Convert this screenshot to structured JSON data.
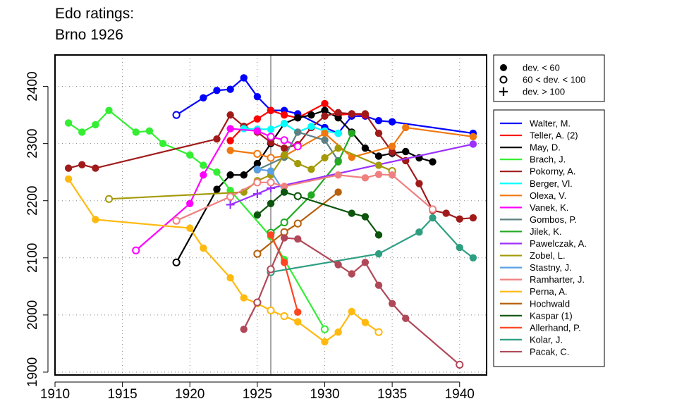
{
  "chart_data": {
    "type": "line",
    "title": [
      "Edo ratings:",
      "Brno 1926"
    ],
    "xlabel": "",
    "ylabel": "",
    "xlim": [
      1910,
      1942
    ],
    "ylim": [
      1895,
      2455
    ],
    "x_ticks": [
      1910,
      1915,
      1920,
      1925,
      1930,
      1935,
      1940
    ],
    "y_ticks": [
      1900,
      2000,
      2100,
      2200,
      2300,
      2400
    ],
    "reference_line_x": 1926,
    "grid": "dotted",
    "marker_legend": [
      {
        "marker": "filled",
        "label": "dev. < 60"
      },
      {
        "marker": "open",
        "label": "60 < dev. < 100"
      },
      {
        "marker": "plus",
        "label": "dev. > 100"
      }
    ],
    "series": [
      {
        "name": "Walter, M.",
        "color": "#0000ff",
        "points": [
          [
            1919,
            2350,
            "o"
          ],
          [
            1921,
            2380,
            "f"
          ],
          [
            1922,
            2393,
            "f"
          ],
          [
            1923,
            2395,
            "f"
          ],
          [
            1924,
            2415,
            "f"
          ],
          [
            1925,
            2382,
            "f"
          ],
          [
            1926,
            2358,
            "f"
          ],
          [
            1927,
            2358,
            "f"
          ],
          [
            1928,
            2352,
            "f"
          ],
          [
            1930,
            2328,
            "f"
          ],
          [
            1931,
            2318,
            "f"
          ],
          [
            1932,
            2348,
            "f"
          ],
          [
            1933,
            2348,
            "f"
          ],
          [
            1934,
            2340,
            "f"
          ],
          [
            1935,
            2338,
            "f"
          ],
          [
            1941,
            2318,
            "f"
          ]
        ]
      },
      {
        "name": "Teller, A. (2)",
        "color": "#ff0000",
        "points": [
          [
            1923,
            2305,
            "f"
          ],
          [
            1924,
            2330,
            "f"
          ],
          [
            1925,
            2343,
            "f"
          ],
          [
            1926,
            2358,
            "f"
          ],
          [
            1927,
            2350,
            "f"
          ],
          [
            1928,
            2345,
            "f"
          ],
          [
            1930,
            2370,
            "f"
          ],
          [
            1931,
            2350,
            "f"
          ],
          [
            1932,
            2352,
            "f"
          ],
          [
            1933,
            2350,
            "f"
          ]
        ]
      },
      {
        "name": "May, D.",
        "color": "#000000",
        "points": [
          [
            1919,
            2092,
            "o"
          ],
          [
            1922,
            2220,
            "f"
          ],
          [
            1923,
            2245,
            "f"
          ],
          [
            1924,
            2245,
            "f"
          ],
          [
            1925,
            2265,
            "f"
          ],
          [
            1926,
            2300,
            "f"
          ],
          [
            1927,
            2335,
            "f"
          ],
          [
            1928,
            2345,
            "f"
          ],
          [
            1929,
            2350,
            "f"
          ],
          [
            1930,
            2358,
            "f"
          ],
          [
            1931,
            2345,
            "f"
          ],
          [
            1932,
            2320,
            "f"
          ],
          [
            1933,
            2292,
            "f"
          ],
          [
            1934,
            2278,
            "f"
          ],
          [
            1935,
            2283,
            "f"
          ],
          [
            1936,
            2286,
            "f"
          ],
          [
            1937,
            2275,
            "f"
          ],
          [
            1938,
            2268,
            "f"
          ]
        ]
      },
      {
        "name": "Brach, J.",
        "color": "#33ee33",
        "points": [
          [
            1911,
            2336,
            "f"
          ],
          [
            1912,
            2320,
            "f"
          ],
          [
            1913,
            2333,
            "f"
          ],
          [
            1914,
            2358,
            "f"
          ],
          [
            1916,
            2320,
            "f"
          ],
          [
            1917,
            2322,
            "f"
          ],
          [
            1918,
            2300,
            "f"
          ],
          [
            1920,
            2280,
            "f"
          ],
          [
            1921,
            2262,
            "f"
          ],
          [
            1922,
            2250,
            "f"
          ],
          [
            1923,
            2218,
            "f"
          ],
          [
            1926,
            2137,
            "f"
          ],
          [
            1927,
            2097,
            "f"
          ],
          [
            1930,
            1975,
            "o"
          ]
        ]
      },
      {
        "name": "Pokorny, A.",
        "color": "#a01a1a",
        "points": [
          [
            1911,
            2257,
            "f"
          ],
          [
            1912,
            2263,
            "f"
          ],
          [
            1913,
            2257,
            "f"
          ],
          [
            1922,
            2308,
            "f"
          ],
          [
            1923,
            2350,
            "f"
          ],
          [
            1924,
            2330,
            "f"
          ],
          [
            1925,
            2320,
            "f"
          ],
          [
            1926,
            2302,
            "f"
          ],
          [
            1927,
            2292,
            "f"
          ],
          [
            1928,
            2298,
            "f"
          ],
          [
            1929,
            2328,
            "f"
          ],
          [
            1930,
            2348,
            "f"
          ],
          [
            1931,
            2354,
            "f"
          ],
          [
            1932,
            2352,
            "f"
          ],
          [
            1933,
            2352,
            "f"
          ],
          [
            1934,
            2318,
            "f"
          ],
          [
            1935,
            2285,
            "f"
          ],
          [
            1936,
            2270,
            "f"
          ],
          [
            1937,
            2230,
            "f"
          ],
          [
            1938,
            2183,
            "f"
          ],
          [
            1939,
            2178,
            "f"
          ],
          [
            1940,
            2168,
            "f"
          ],
          [
            1941,
            2170,
            "f"
          ]
        ]
      },
      {
        "name": "Berger, Vl.",
        "color": "#00ffff",
        "points": [
          [
            1924,
            2326,
            "f"
          ],
          [
            1925,
            2325,
            "f"
          ],
          [
            1926,
            2325,
            "f"
          ],
          [
            1927,
            2335,
            "f"
          ],
          [
            1928,
            2320,
            "f"
          ],
          [
            1929,
            2330,
            "f"
          ],
          [
            1930,
            2322,
            "f"
          ],
          [
            1931,
            2318,
            "f"
          ]
        ]
      },
      {
        "name": "Olexa, V.",
        "color": "#f07810",
        "points": [
          [
            1923,
            2288,
            "f"
          ],
          [
            1925,
            2282,
            "o"
          ],
          [
            1926,
            2275,
            "o"
          ],
          [
            1927,
            2278,
            "o"
          ],
          [
            1930,
            2318,
            "f"
          ],
          [
            1932,
            2276,
            "f"
          ],
          [
            1935,
            2295,
            "f"
          ],
          [
            1936,
            2328,
            "f"
          ],
          [
            1941,
            2312,
            "f"
          ]
        ]
      },
      {
        "name": "Vanek, K.",
        "color": "#ff00ff",
        "points": [
          [
            1916,
            2113,
            "o"
          ],
          [
            1920,
            2195,
            "f"
          ],
          [
            1921,
            2245,
            "f"
          ],
          [
            1923,
            2326,
            "f"
          ],
          [
            1925,
            2322,
            "f"
          ],
          [
            1926,
            2312,
            "o"
          ],
          [
            1927,
            2306,
            "o"
          ],
          [
            1928,
            2295,
            "o"
          ]
        ]
      },
      {
        "name": "Gombos, P.",
        "color": "#5f8080",
        "points": [
          [
            1925,
            2254,
            "f"
          ],
          [
            1927,
            2276,
            "f"
          ],
          [
            1928,
            2320,
            "f"
          ],
          [
            1930,
            2306,
            "f"
          ],
          [
            1931,
            2270,
            "f"
          ]
        ]
      },
      {
        "name": "Jilek, K.",
        "color": "#22aa22",
        "points": [
          [
            1926,
            2144,
            "o"
          ],
          [
            1927,
            2162,
            "o"
          ],
          [
            1929,
            2210,
            "f"
          ],
          [
            1931,
            2268,
            "f"
          ],
          [
            1932,
            2318,
            "f"
          ]
        ]
      },
      {
        "name": "Pawelczak, A.",
        "color": "#9b30ff",
        "points": [
          [
            1923,
            2193,
            "p"
          ],
          [
            1925,
            2212,
            "p"
          ],
          [
            1926,
            2222,
            "p"
          ],
          [
            1941,
            2299,
            "f"
          ]
        ]
      },
      {
        "name": "Zobel, L.",
        "color": "#a39a0a",
        "points": [
          [
            1914,
            2203,
            "o"
          ],
          [
            1924,
            2215,
            "f"
          ],
          [
            1925,
            2235,
            "f"
          ],
          [
            1926,
            2245,
            "f"
          ],
          [
            1927,
            2280,
            "f"
          ],
          [
            1928,
            2265,
            "f"
          ],
          [
            1929,
            2255,
            "f"
          ],
          [
            1930,
            2275,
            "f"
          ],
          [
            1931,
            2292,
            "f"
          ],
          [
            1934,
            2262,
            "f"
          ],
          [
            1935,
            2252,
            "o"
          ]
        ]
      },
      {
        "name": "Stastny, J.",
        "color": "#5aa0e6",
        "points": [
          [
            1925,
            2255,
            "f"
          ],
          [
            1926,
            2252,
            "f"
          ],
          [
            1927,
            2215,
            "f"
          ]
        ]
      },
      {
        "name": "Ramharter, J.",
        "color": "#f08080",
        "points": [
          [
            1919,
            2165,
            "o"
          ],
          [
            1923,
            2207,
            "o"
          ],
          [
            1925,
            2232,
            "o"
          ],
          [
            1926,
            2232,
            "o"
          ],
          [
            1927,
            2225,
            "f"
          ],
          [
            1931,
            2245,
            "f"
          ],
          [
            1933,
            2240,
            "f"
          ],
          [
            1934,
            2246,
            "f"
          ],
          [
            1935,
            2245,
            "f"
          ],
          [
            1938,
            2185,
            "o"
          ]
        ]
      },
      {
        "name": "Perna, A.",
        "color": "#ffb90f",
        "points": [
          [
            1911,
            2238,
            "f"
          ],
          [
            1913,
            2167,
            "f"
          ],
          [
            1920,
            2152,
            "f"
          ],
          [
            1921,
            2117,
            "f"
          ],
          [
            1923,
            2065,
            "f"
          ],
          [
            1924,
            2030,
            "f"
          ],
          [
            1925,
            2020,
            "f"
          ],
          [
            1926,
            2008,
            "o"
          ],
          [
            1927,
            1998,
            "o"
          ],
          [
            1928,
            1988,
            "f"
          ],
          [
            1930,
            1953,
            "f"
          ],
          [
            1931,
            1970,
            "f"
          ],
          [
            1932,
            2006,
            "f"
          ],
          [
            1933,
            1987,
            "f"
          ],
          [
            1934,
            1970,
            "o"
          ]
        ]
      },
      {
        "name": "Hochwald",
        "color": "#b8600b",
        "points": [
          [
            1925,
            2107,
            "o"
          ],
          [
            1927,
            2145,
            "o"
          ],
          [
            1928,
            2160,
            "o"
          ],
          [
            1931,
            2215,
            "f"
          ]
        ]
      },
      {
        "name": "Kaspar (1)",
        "color": "#0c550c",
        "points": [
          [
            1925,
            2175,
            "f"
          ],
          [
            1926,
            2195,
            "f"
          ],
          [
            1927,
            2215,
            "f"
          ],
          [
            1928,
            2208,
            "o"
          ],
          [
            1932,
            2178,
            "f"
          ],
          [
            1933,
            2172,
            "f"
          ],
          [
            1934,
            2140,
            "f"
          ]
        ]
      },
      {
        "name": "Allerhand, P.",
        "color": "#ff4522",
        "points": [
          [
            1926,
            2140,
            "f"
          ],
          [
            1927,
            2092,
            "f"
          ],
          [
            1928,
            2005,
            "f"
          ]
        ]
      },
      {
        "name": "Kolar, J.",
        "color": "#2e9e82",
        "points": [
          [
            1926,
            2075,
            "o"
          ],
          [
            1934,
            2107,
            "f"
          ],
          [
            1937,
            2145,
            "f"
          ],
          [
            1938,
            2170,
            "f"
          ],
          [
            1940,
            2118,
            "f"
          ],
          [
            1941,
            2100,
            "f"
          ]
        ]
      },
      {
        "name": "Pacak, C.",
        "color": "#b04858",
        "points": [
          [
            1924,
            1975,
            "f"
          ],
          [
            1925,
            2022,
            "o"
          ],
          [
            1926,
            2080,
            "o"
          ],
          [
            1927,
            2135,
            "f"
          ],
          [
            1928,
            2133,
            "f"
          ],
          [
            1931,
            2088,
            "f"
          ],
          [
            1932,
            2072,
            "f"
          ],
          [
            1933,
            2092,
            "f"
          ],
          [
            1934,
            2052,
            "f"
          ],
          [
            1935,
            2020,
            "f"
          ],
          [
            1936,
            1994,
            "f"
          ],
          [
            1940,
            1913,
            "o"
          ]
        ]
      }
    ]
  }
}
